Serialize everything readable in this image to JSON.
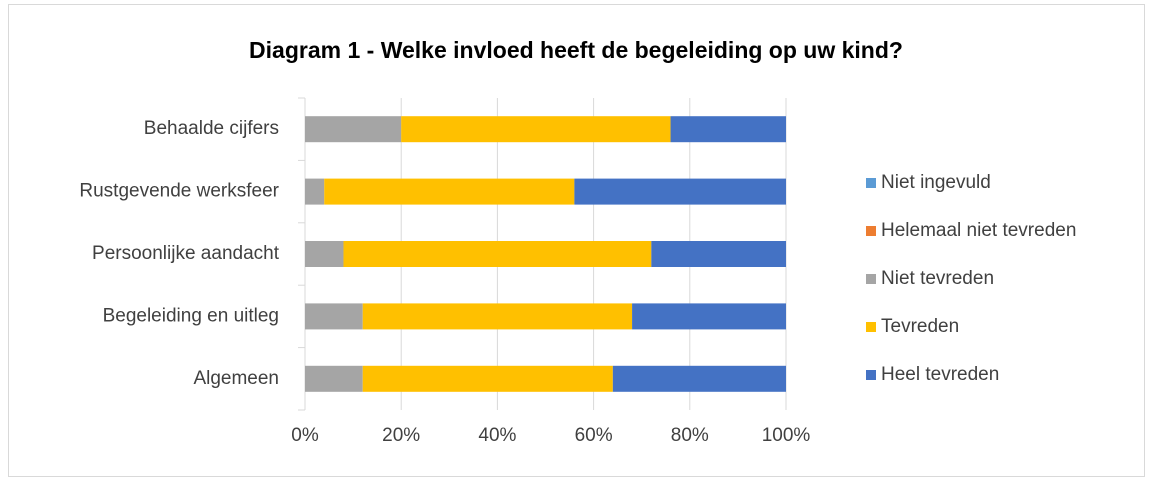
{
  "chart_data": {
    "type": "stacked-bar-horizontal",
    "title": "Diagram 1 - Welke invloed heeft de begeleiding op uw kind?",
    "categories": [
      "Behaalde cijfers",
      "Rustgevende werksfeer",
      "Persoonlijke aandacht",
      "Begeleiding en uitleg",
      "Algemeen"
    ],
    "series": [
      {
        "name": "Niet ingevuld",
        "color": "#5b9bd5",
        "values": [
          0,
          0,
          0,
          0,
          0
        ]
      },
      {
        "name": "Helemaal niet tevreden",
        "color": "#ed7d31",
        "values": [
          0,
          0,
          0,
          0,
          0
        ]
      },
      {
        "name": "Niet tevreden",
        "color": "#a5a5a5",
        "values": [
          20,
          4,
          8,
          12,
          12
        ]
      },
      {
        "name": "Tevreden",
        "color": "#ffc000",
        "values": [
          56,
          52,
          64,
          56,
          52
        ]
      },
      {
        "name": "Heel tevreden",
        "color": "#4472c4",
        "values": [
          24,
          44,
          28,
          32,
          36
        ]
      }
    ],
    "xlim": [
      0,
      100
    ],
    "xticks": [
      {
        "value": 0,
        "label": "0%"
      },
      {
        "value": 20,
        "label": "20%"
      },
      {
        "value": 40,
        "label": "40%"
      },
      {
        "value": 60,
        "label": "60%"
      },
      {
        "value": 80,
        "label": "80%"
      },
      {
        "value": 100,
        "label": "100%"
      }
    ],
    "grid": true,
    "legend": "right"
  }
}
